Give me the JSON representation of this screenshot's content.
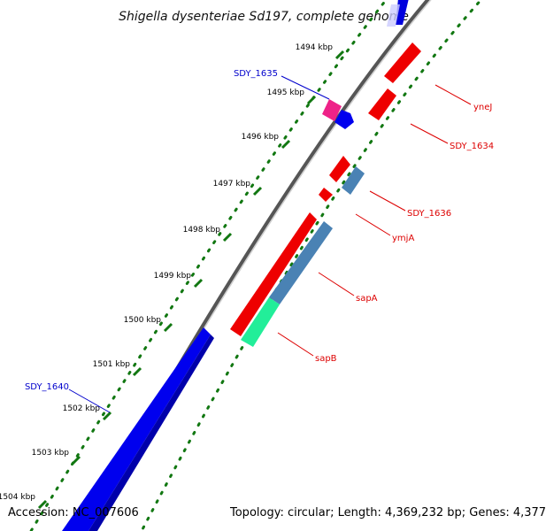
{
  "title": "Shigella dysenteriae Sd197, complete genome",
  "ticks": [
    {
      "label": "1494 kbp"
    },
    {
      "label": "1495 kbp"
    },
    {
      "label": "1496 kbp"
    },
    {
      "label": "1497 kbp"
    },
    {
      "label": "1498 kbp"
    },
    {
      "label": "1499 kbp"
    },
    {
      "label": "1500 kbp"
    },
    {
      "label": "1501 kbp"
    },
    {
      "label": "1502 kbp"
    },
    {
      "label": "1503 kbp"
    },
    {
      "label": "1504 kbp"
    }
  ],
  "genes": [
    {
      "name": "SDY_1635",
      "strand": "reverse",
      "color": "#0000cc"
    },
    {
      "name": "SDY_1640",
      "strand": "reverse",
      "color": "#0000cc"
    },
    {
      "name": "yneJ",
      "strand": "forward",
      "color": "#dd0000"
    },
    {
      "name": "SDY_1634",
      "strand": "forward",
      "color": "#dd0000"
    },
    {
      "name": "SDY_1636",
      "strand": "forward",
      "color": "#dd0000"
    },
    {
      "name": "ymjA",
      "strand": "forward",
      "color": "#dd0000"
    },
    {
      "name": "sapA",
      "strand": "forward",
      "color": "#dd0000"
    },
    {
      "name": "sapB",
      "strand": "forward",
      "color": "#dd0000"
    }
  ],
  "colors": {
    "forward_cds": "#ee0000",
    "reverse_cds": "#0000dd",
    "pseudo_pink": "#ee2288",
    "steelblue_cds": "#4a82b4",
    "teal_cds": "#22ee99",
    "backbone": "#777777",
    "gc_dots": "#117711"
  },
  "footer": {
    "accession": "Accession: NC_007606",
    "summary": "Topology: circular; Length: 4,369,232 bp; Genes: 4,377"
  }
}
